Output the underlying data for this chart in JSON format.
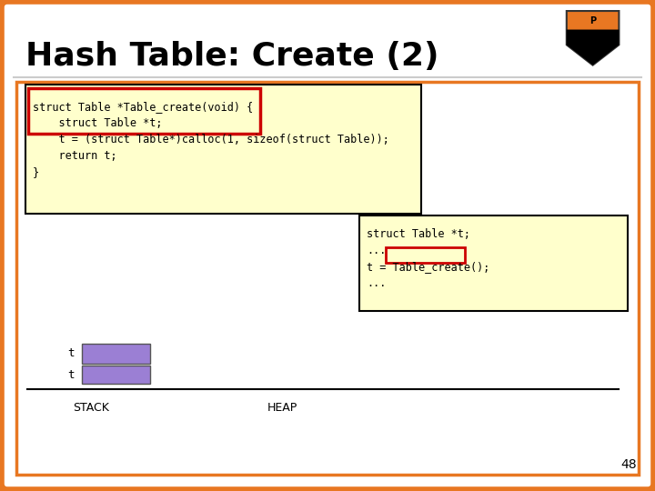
{
  "title": "Hash Table: Create (2)",
  "title_fontsize": 26,
  "title_color": "#000000",
  "border_color": "#E87722",
  "code_box1_text": [
    "struct Table *Table_create(void) {",
    "    struct Table *t;",
    "    t = (struct Table*)calloc(1, sizeof(struct Table));",
    "    return t;",
    "}"
  ],
  "code_box1_bg": "#ffffcc",
  "code_box2_text": [
    "struct Table *t;",
    "...",
    "t = Table_create();",
    "..."
  ],
  "code_box2_bg": "#ffffcc",
  "stack_label": "STACK",
  "heap_label": "HEAP",
  "stack_color": "#9b7fd4",
  "page_number": "48"
}
